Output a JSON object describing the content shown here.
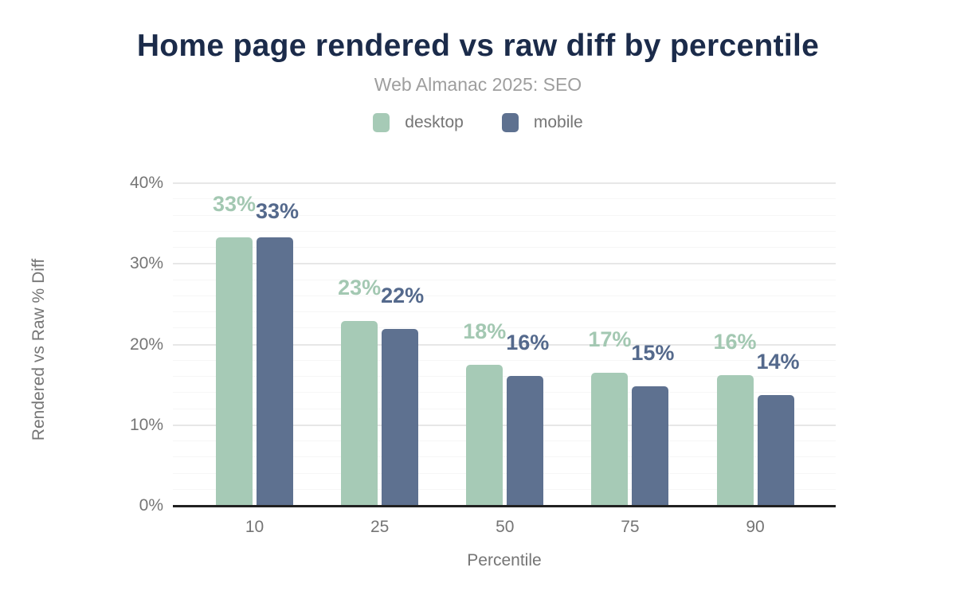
{
  "title": "Home page rendered vs raw diff by percentile",
  "subtitle": "Web Almanac 2025: SEO",
  "legend": {
    "items": [
      {
        "label": "desktop",
        "color": "#a6cab6"
      },
      {
        "label": "mobile",
        "color": "#5e7190"
      }
    ]
  },
  "colors": {
    "title_text": "#1b2b4a",
    "subtitle_text": "#9e9e9e",
    "axis_text": "#757575",
    "axis_line": "#212121",
    "gridline_major": "#e7e7e7",
    "gridline_minor": "#f6f6f6",
    "desktop_bar": "#a6cab6",
    "mobile_bar": "#5e7190",
    "desktop_label": "#a3c8b2",
    "mobile_label": "#54698c"
  },
  "chart_data": {
    "type": "bar",
    "title": "Home page rendered vs raw diff by percentile",
    "subtitle": "Web Almanac 2025: SEO",
    "categories": [
      "10",
      "25",
      "50",
      "75",
      "90"
    ],
    "series": [
      {
        "name": "desktop",
        "color": "#a6cab6",
        "label_color": "#a3c8b2",
        "values": [
          33.3,
          22.9,
          17.5,
          16.5,
          16.2
        ],
        "labels": [
          "33%",
          "23%",
          "18%",
          "17%",
          "16%"
        ]
      },
      {
        "name": "mobile",
        "color": "#5e7190",
        "label_color": "#54698c",
        "values": [
          33.3,
          21.9,
          16.1,
          14.8,
          13.7
        ],
        "labels": [
          "33%",
          "22%",
          "16%",
          "15%",
          "14%"
        ]
      }
    ],
    "xlabel": "Percentile",
    "ylabel": "Rendered vs Raw % Diff",
    "ylim": [
      0,
      40
    ],
    "yticks": [
      "0%",
      "10%",
      "20%",
      "30%",
      "40%"
    ],
    "ytick_values": [
      0,
      10,
      20,
      30,
      40
    ],
    "minor_grid_step": 2,
    "grid": "on",
    "legend_position": "top"
  }
}
